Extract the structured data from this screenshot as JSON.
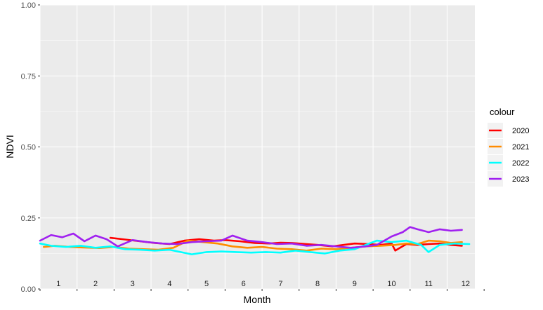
{
  "chart_data": {
    "type": "line",
    "xlabel": "Month",
    "ylabel": "NDVI",
    "xlim": [
      1,
      12.75
    ],
    "ylim": [
      0,
      1
    ],
    "yticks": [
      "0.00",
      "0.25",
      "0.50",
      "0.75",
      "1.00"
    ],
    "categories": [
      "1",
      "2",
      "3",
      "4",
      "5",
      "6",
      "7",
      "8",
      "9",
      "10",
      "11",
      "12"
    ],
    "grid": true,
    "legend": {
      "title": "colour",
      "position": "right"
    },
    "series": [
      {
        "name": "2020",
        "color": "#ff0000",
        "x": [
          2.9,
          3.3,
          3.7,
          4.1,
          4.5,
          4.9,
          5.3,
          5.7,
          6.0,
          6.4,
          6.8,
          7.2,
          7.5,
          7.8,
          8.2,
          8.5,
          8.9,
          9.2,
          9.5,
          9.9,
          10.2,
          10.5,
          10.6,
          10.9,
          11.2,
          11.5,
          11.8,
          12.1,
          12.4
        ],
        "values": [
          0.18,
          0.174,
          0.168,
          0.162,
          0.158,
          0.17,
          0.175,
          0.17,
          0.172,
          0.168,
          0.162,
          0.16,
          0.163,
          0.162,
          0.158,
          0.155,
          0.15,
          0.155,
          0.16,
          0.158,
          0.155,
          0.16,
          0.135,
          0.158,
          0.155,
          0.158,
          0.16,
          0.155,
          0.152
        ]
      },
      {
        "name": "2021",
        "color": "#ff8c00",
        "x": [
          1.1,
          1.4,
          1.8,
          2.2,
          2.6,
          3.0,
          3.4,
          3.8,
          4.2,
          4.6,
          5.0,
          5.4,
          5.8,
          6.2,
          6.6,
          7.0,
          7.4,
          7.8,
          8.2,
          8.6,
          9.0,
          9.4,
          9.8,
          10.2,
          10.6,
          10.9,
          11.2,
          11.5,
          11.8,
          12.1,
          12.4
        ],
        "values": [
          0.148,
          0.152,
          0.148,
          0.146,
          0.144,
          0.148,
          0.142,
          0.14,
          0.138,
          0.145,
          0.17,
          0.165,
          0.16,
          0.15,
          0.145,
          0.148,
          0.142,
          0.14,
          0.135,
          0.142,
          0.14,
          0.145,
          0.15,
          0.152,
          0.155,
          0.16,
          0.158,
          0.17,
          0.168,
          0.162,
          0.165
        ]
      },
      {
        "name": "2022",
        "color": "#00ffff",
        "x": [
          1.0,
          1.3,
          1.7,
          2.1,
          2.5,
          2.9,
          3.3,
          3.7,
          4.1,
          4.5,
          4.8,
          5.1,
          5.5,
          5.9,
          6.3,
          6.7,
          7.1,
          7.5,
          7.9,
          8.3,
          8.7,
          9.1,
          9.5,
          9.8,
          10.1,
          10.5,
          10.9,
          11.3,
          11.5,
          11.8,
          12.2,
          12.6
        ],
        "values": [
          0.16,
          0.152,
          0.148,
          0.152,
          0.145,
          0.15,
          0.14,
          0.138,
          0.135,
          0.138,
          0.13,
          0.122,
          0.13,
          0.132,
          0.13,
          0.128,
          0.13,
          0.128,
          0.135,
          0.13,
          0.125,
          0.135,
          0.14,
          0.155,
          0.17,
          0.165,
          0.17,
          0.155,
          0.13,
          0.155,
          0.16,
          0.158
        ]
      },
      {
        "name": "2023",
        "color": "#a020f0",
        "x": [
          1.0,
          1.3,
          1.6,
          1.9,
          2.2,
          2.5,
          2.8,
          3.1,
          3.5,
          3.9,
          4.3,
          4.7,
          5.1,
          5.5,
          5.9,
          6.2,
          6.6,
          7.0,
          7.4,
          7.8,
          8.2,
          8.6,
          9.0,
          9.4,
          9.8,
          10.1,
          10.5,
          10.8,
          11.0,
          11.2,
          11.5,
          11.8,
          12.1,
          12.4
        ],
        "values": [
          0.17,
          0.19,
          0.182,
          0.195,
          0.168,
          0.188,
          0.175,
          0.15,
          0.172,
          0.165,
          0.16,
          0.158,
          0.165,
          0.168,
          0.17,
          0.188,
          0.17,
          0.165,
          0.158,
          0.16,
          0.152,
          0.155,
          0.15,
          0.145,
          0.15,
          0.155,
          0.185,
          0.2,
          0.218,
          0.21,
          0.2,
          0.21,
          0.205,
          0.208
        ]
      }
    ]
  }
}
